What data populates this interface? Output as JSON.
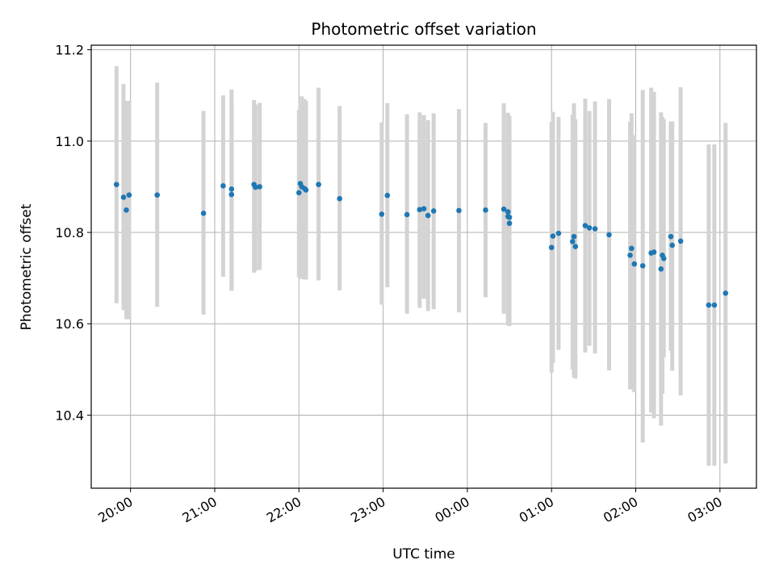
{
  "chart_data": {
    "type": "scatter",
    "title": "Photometric offset variation",
    "xlabel": "UTC time",
    "ylabel": "Photometric offset",
    "x_start_label": "19:32",
    "x_tick_labels": [
      "20:00",
      "21:00",
      "22:00",
      "23:00",
      "00:00",
      "01:00",
      "02:00",
      "03:00"
    ],
    "y_tick_labels": [
      "10.4",
      "10.6",
      "10.8",
      "11.0",
      "11.2"
    ],
    "xlim": [
      "19:32",
      "03:26"
    ],
    "ylim": [
      10.24,
      11.21
    ],
    "grid": true,
    "colors": {
      "points": "#1f77b4",
      "errorbars": "#d3d3d3",
      "grid": "#b0b0b0"
    },
    "series": [
      {
        "x": [
          "19:50",
          "19:55",
          "19:57",
          "19:59",
          "20:19",
          "20:52",
          "21:06",
          "21:12",
          "21:12",
          "21:28",
          "21:29",
          "21:32",
          "22:00",
          "22:01",
          "22:02",
          "22:04",
          "22:05",
          "22:14",
          "22:29",
          "22:59",
          "23:03",
          "23:17",
          "23:26",
          "23:29",
          "23:32",
          "23:36",
          "23:54",
          "00:13",
          "00:26",
          "00:29",
          "00:29",
          "00:30",
          "00:30",
          "01:00",
          "01:01",
          "01:05",
          "01:15",
          "01:16",
          "01:17",
          "01:24",
          "01:27",
          "01:31",
          "01:41",
          "01:56",
          "01:57",
          "01:59",
          "02:05",
          "02:11",
          "02:13",
          "02:18",
          "02:19",
          "02:20",
          "02:25",
          "02:26",
          "02:32",
          "02:52",
          "02:56",
          "03:04"
        ],
        "y": [
          10.905,
          10.877,
          10.849,
          10.882,
          10.882,
          10.842,
          10.902,
          10.895,
          10.883,
          10.905,
          10.899,
          10.9,
          10.887,
          10.907,
          10.9,
          10.896,
          10.893,
          10.905,
          10.874,
          10.84,
          10.881,
          10.839,
          10.85,
          10.852,
          10.837,
          10.847,
          10.848,
          10.849,
          10.851,
          10.835,
          10.845,
          10.833,
          10.82,
          10.767,
          10.792,
          10.798,
          10.78,
          10.791,
          10.769,
          10.815,
          10.81,
          10.808,
          10.795,
          10.75,
          10.765,
          10.731,
          10.727,
          10.755,
          10.757,
          10.72,
          10.75,
          10.743,
          10.791,
          10.772,
          10.781,
          10.641,
          10.641,
          10.667
        ],
        "err_low": [
          10.645,
          10.63,
          10.61,
          10.61,
          10.637,
          10.62,
          10.703,
          10.675,
          10.672,
          10.712,
          10.716,
          10.718,
          10.702,
          10.733,
          10.698,
          10.697,
          10.697,
          10.695,
          10.673,
          10.642,
          10.68,
          10.622,
          10.635,
          10.655,
          10.628,
          10.632,
          10.625,
          10.658,
          10.622,
          10.601,
          10.597,
          10.596,
          10.595,
          10.493,
          10.514,
          10.543,
          10.5,
          10.483,
          10.48,
          10.537,
          10.552,
          10.535,
          10.498,
          10.457,
          10.456,
          10.45,
          10.34,
          10.405,
          10.393,
          10.377,
          10.447,
          10.527,
          10.541,
          10.497,
          10.443,
          10.289,
          10.289,
          10.294
        ],
        "err_high": [
          11.164,
          11.125,
          11.088,
          11.088,
          11.128,
          11.066,
          11.1,
          11.113,
          11.092,
          11.09,
          11.08,
          11.084,
          11.068,
          11.08,
          11.098,
          11.092,
          11.088,
          11.117,
          11.077,
          11.041,
          11.083,
          11.059,
          11.063,
          11.057,
          11.046,
          11.061,
          11.07,
          11.04,
          11.083,
          11.062,
          11.058,
          11.055,
          11.052,
          11.042,
          11.064,
          11.053,
          11.058,
          11.083,
          11.048,
          11.093,
          11.066,
          11.087,
          11.092,
          11.042,
          11.061,
          11.013,
          11.112,
          11.117,
          11.108,
          11.063,
          11.053,
          11.048,
          11.043,
          11.043,
          11.118,
          10.993,
          10.993,
          11.04
        ]
      }
    ]
  }
}
